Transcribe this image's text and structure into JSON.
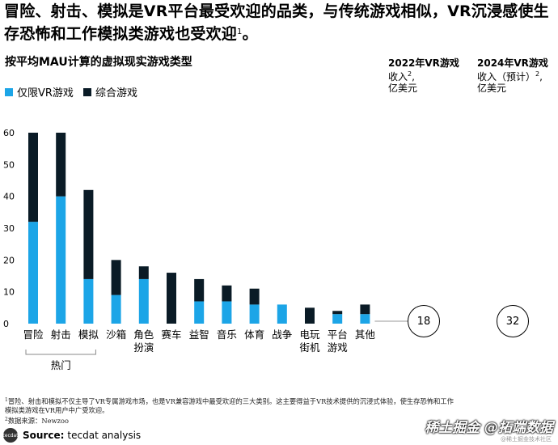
{
  "headline": {
    "text": "冒险、射击、模拟是VR平台最受欢迎的品类，与传统游戏相似，VR沉浸感使生存恐怖和工作模拟类游戏也受欢迎",
    "sup": "1",
    "suffix": "。"
  },
  "subtitle": "按平均MAU计算的虚拟现实游戏类型",
  "legend": [
    {
      "label": "仅限VR游戏",
      "color": "#1ca5e7"
    },
    {
      "label": "综合游戏",
      "color": "#0a1b26"
    }
  ],
  "revenue_2022": {
    "title": "2022年VR游戏",
    "line2": "收入",
    "sup": "2",
    "unit": "亿美元",
    "value": "18"
  },
  "revenue_2024": {
    "title": "2024年VR游戏",
    "line2": "收入（预计）",
    "sup": "2",
    "unit": "亿美元",
    "value": "32"
  },
  "group_label": "热门",
  "chart_data": {
    "type": "bar",
    "stacked": true,
    "categories": [
      "冒险",
      "射击",
      "模拟",
      "沙箱",
      "角色扮演",
      "赛车",
      "益智",
      "音乐",
      "体育",
      "战争",
      "电玩街机",
      "平台游戏",
      "其他"
    ],
    "category_lines": [
      [
        "冒险"
      ],
      [
        "射击"
      ],
      [
        "模拟"
      ],
      [
        "沙箱"
      ],
      [
        "角色",
        "扮演"
      ],
      [
        "赛车"
      ],
      [
        "益智"
      ],
      [
        "音乐"
      ],
      [
        "体育"
      ],
      [
        "战争"
      ],
      [
        "电玩",
        "街机"
      ],
      [
        "平台",
        "游戏"
      ],
      [
        "其他"
      ]
    ],
    "series": [
      {
        "name": "仅限VR游戏",
        "values": [
          32,
          40,
          14,
          9,
          14,
          0,
          7,
          7,
          6,
          6,
          0,
          3,
          3
        ]
      },
      {
        "name": "综合游戏",
        "values": [
          28,
          20,
          28,
          11,
          4,
          16,
          7,
          5,
          5,
          0,
          5,
          1,
          3
        ]
      }
    ],
    "yticks": [
      0,
      10,
      20,
      30,
      40,
      50,
      60
    ],
    "ylim": [
      0,
      60
    ]
  },
  "footnote": {
    "line1_sup": "1",
    "line1": "冒险、射击和模拟不仅主导了VR专属游戏市场，也是VR兼容游戏中最受欢迎的三大类别。这主要得益于VR技术提供的沉浸式体验，使生存恐怖和工作",
    "line2": "模拟类游戏在VR用户中广受欢迎。",
    "line3_sup": "2",
    "line3": "数据来源：Newzoo"
  },
  "source": {
    "label": "Source:",
    "text": "tecdat analysis",
    "logo": "tecdat"
  },
  "watermark": {
    "text": "拓端数据",
    "at": "@",
    "brand": "稀土掘金",
    "sub": "@稀土掘金技术社区"
  }
}
